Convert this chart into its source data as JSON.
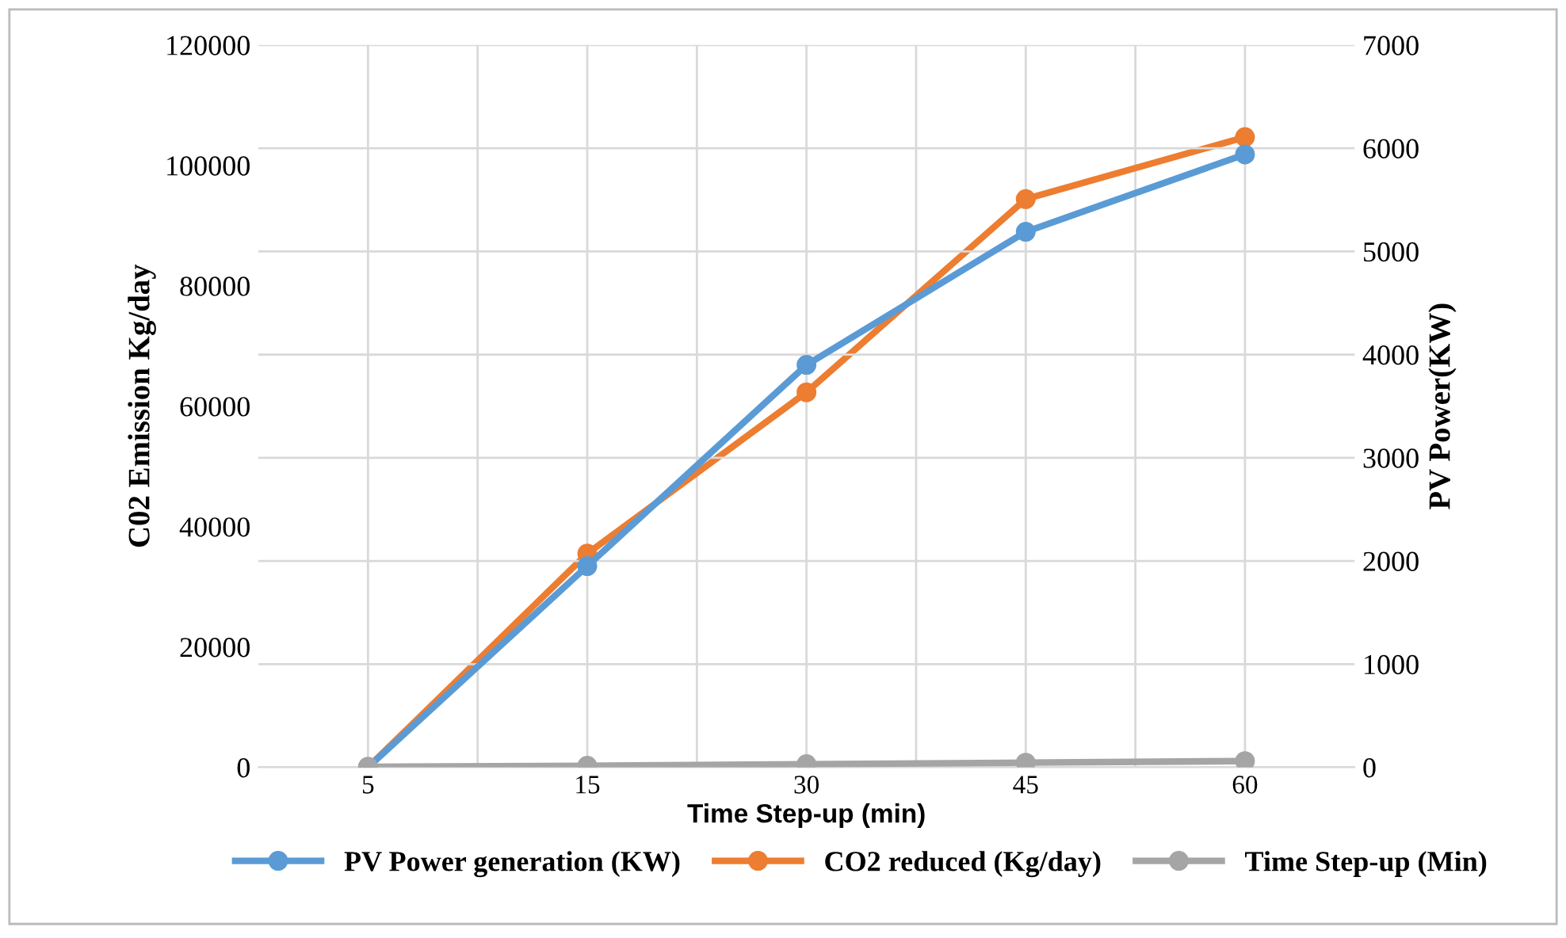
{
  "chart_data": {
    "type": "line",
    "xlabel": "Time Step-up (min)",
    "ylabel": "C02 Emission Kg/day",
    "y2label": "PV Power(KW)",
    "categories": [
      "5",
      "15",
      "30",
      "45",
      "60"
    ],
    "series": [
      {
        "name": "PV Power generation (KW)",
        "color": "#5b9bd5",
        "values": [
          0,
          1950,
          3900,
          5190,
          5940
        ],
        "axis": "y2"
      },
      {
        "name": "CO2 reduced (Kg/day)",
        "color": "#ed7d31",
        "values": [
          0,
          35500,
          62300,
          94400,
          104700
        ],
        "axis": "y"
      },
      {
        "name": "Time Step-up (Min)",
        "color": "#a5a5a5",
        "values": [
          5,
          15,
          30,
          45,
          60
        ],
        "axis": "y2"
      }
    ],
    "ylim": [
      0,
      120000
    ],
    "yticks": [
      0,
      20000,
      40000,
      60000,
      80000,
      100000,
      120000
    ],
    "y2lim": [
      0,
      7000
    ],
    "y2ticks": [
      0,
      1000,
      2000,
      3000,
      4000,
      5000,
      6000,
      7000
    ],
    "grid": true,
    "legend": "bottom",
    "marker": "circle",
    "line_style": "solid"
  }
}
